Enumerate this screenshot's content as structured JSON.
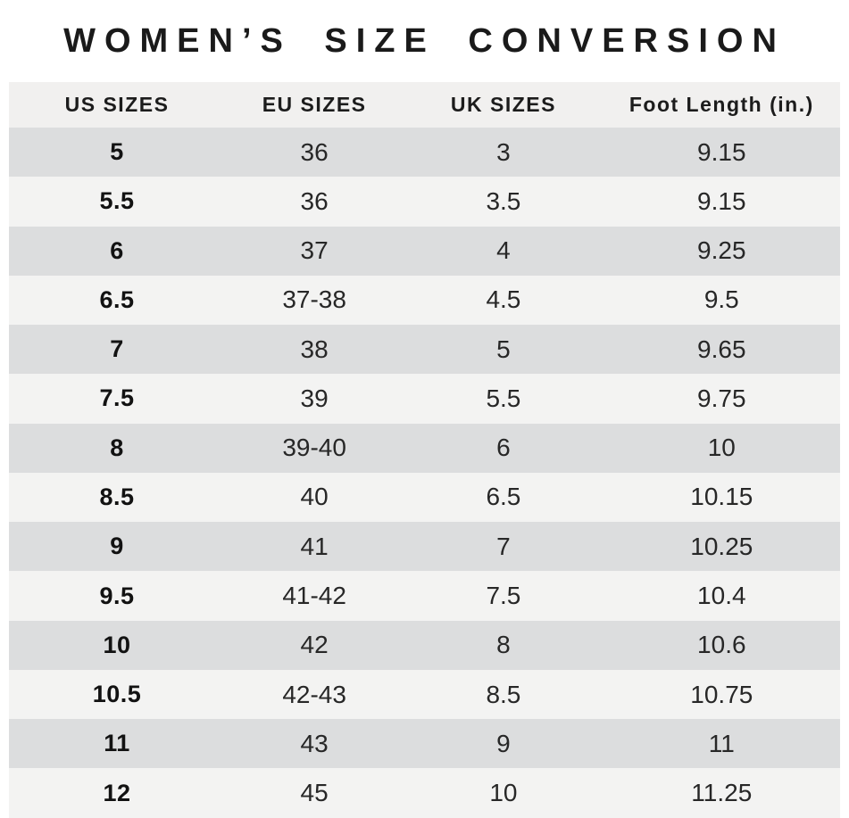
{
  "title": "WOMEN’S SIZE CONVERSION",
  "chart_data": {
    "type": "table",
    "title": "WOMEN’S SIZE CONVERSION",
    "columns": [
      "US SIZES",
      "EU SIZES",
      "UK SIZES",
      "Foot Length (in.)"
    ],
    "rows": [
      [
        "5",
        "36",
        "3",
        "9.15"
      ],
      [
        "5.5",
        "36",
        "3.5",
        "9.15"
      ],
      [
        "6",
        "37",
        "4",
        "9.25"
      ],
      [
        "6.5",
        "37-38",
        "4.5",
        "9.5"
      ],
      [
        "7",
        "38",
        "5",
        "9.65"
      ],
      [
        "7.5",
        "39",
        "5.5",
        "9.75"
      ],
      [
        "8",
        "39-40",
        "6",
        "10"
      ],
      [
        "8.5",
        "40",
        "6.5",
        "10.15"
      ],
      [
        "9",
        "41",
        "7",
        "10.25"
      ],
      [
        "9.5",
        "41-42",
        "7.5",
        "10.4"
      ],
      [
        "10",
        "42",
        "8",
        "10.6"
      ],
      [
        "10.5",
        "42-43",
        "8.5",
        "10.75"
      ],
      [
        "11",
        "43",
        "9",
        "11"
      ],
      [
        "12",
        "45",
        "10",
        "11.25"
      ]
    ]
  },
  "colors": {
    "row_dark": "#dcddde",
    "row_light": "#f3f3f2",
    "header_bg": "#f1f0ef",
    "title_text": "#1a1a1a"
  }
}
